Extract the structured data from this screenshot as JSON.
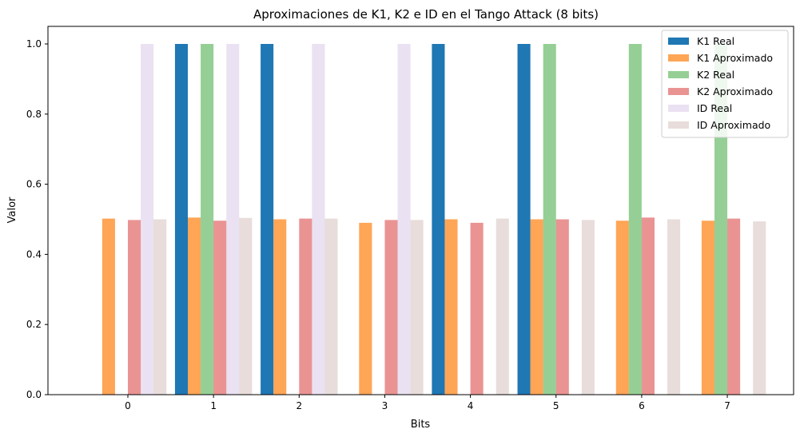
{
  "chart_data": {
    "type": "bar",
    "title": "Aproximaciones de K1, K2 e ID en el Tango Attack (8 bits)",
    "xlabel": "Bits",
    "ylabel": "Valor",
    "categories": [
      "0",
      "1",
      "2",
      "3",
      "4",
      "5",
      "6",
      "7"
    ],
    "ylim": [
      0,
      1.05
    ],
    "yticks": [
      "0.0",
      "0.2",
      "0.4",
      "0.6",
      "0.8",
      "1.0"
    ],
    "grid": false,
    "legend_position": "top-right",
    "series": [
      {
        "name": "K1 Real",
        "color": "#1f77b4",
        "opacity": 1.0,
        "values": [
          0,
          1,
          1,
          0,
          1,
          1,
          0,
          0
        ]
      },
      {
        "name": "K1 Aproximado",
        "color": "#ff7f0e",
        "opacity": 0.7,
        "values": [
          0.502,
          0.505,
          0.5,
          0.49,
          0.5,
          0.5,
          0.496,
          0.496
        ]
      },
      {
        "name": "K2 Real",
        "color": "#2ca02c",
        "opacity": 0.5,
        "values": [
          0,
          1,
          0,
          0,
          0,
          1,
          1,
          1
        ]
      },
      {
        "name": "K2 Aproximado",
        "color": "#d62728",
        "opacity": 0.5,
        "values": [
          0.498,
          0.496,
          0.502,
          0.498,
          0.49,
          0.5,
          0.505,
          0.502
        ]
      },
      {
        "name": "ID Real",
        "color": "#9467bd",
        "opacity": 0.2,
        "values": [
          1,
          1,
          1,
          1,
          0,
          0,
          0,
          0
        ]
      },
      {
        "name": "ID Aproximado",
        "color": "#8c564b",
        "opacity": 0.2,
        "values": [
          0.5,
          0.504,
          0.502,
          0.498,
          0.502,
          0.498,
          0.5,
          0.494
        ]
      }
    ]
  }
}
